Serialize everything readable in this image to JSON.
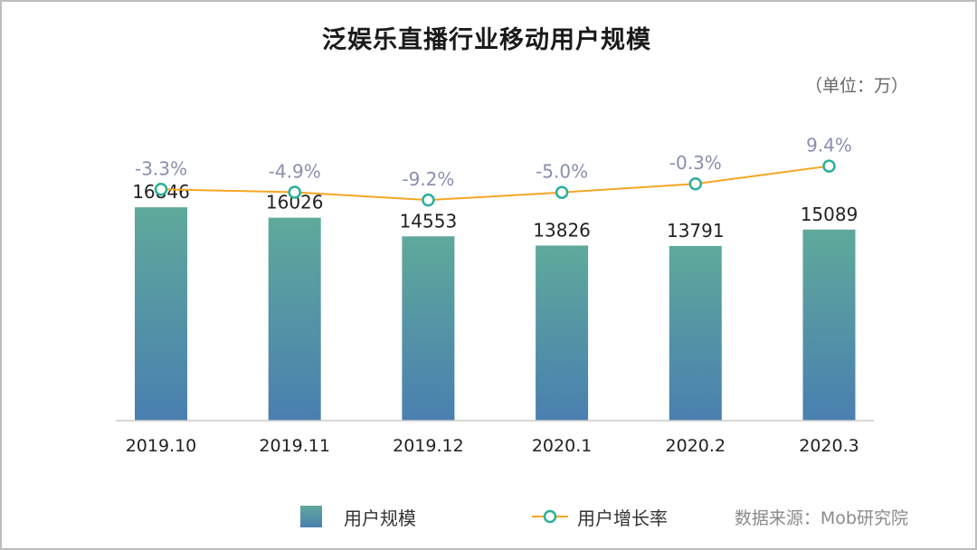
{
  "chart_data": {
    "type": "bar",
    "title": "泛娱乐直播行业移动用户规模",
    "unit_note": "（单位：万）",
    "categories": [
      "2019.10",
      "2019.11",
      "2019.12",
      "2020.1",
      "2020.2",
      "2020.3"
    ],
    "series": [
      {
        "name": "用户规模",
        "type": "bar",
        "values": [
          16846,
          16026,
          14553,
          13826,
          13791,
          15089
        ],
        "labels": [
          "16846",
          "16026",
          "14553",
          "13826",
          "13791",
          "15089"
        ],
        "color_top": "#5fa99b",
        "color_bottom": "#4a7fb0"
      },
      {
        "name": "用户增长率",
        "type": "line",
        "values": [
          -3.3,
          -4.9,
          -9.2,
          -5.0,
          -0.3,
          9.4
        ],
        "labels": [
          "-3.3%",
          "-4.9%",
          "-9.2%",
          "-5.0%",
          "-0.3%",
          "9.4%"
        ],
        "line_color": "#f5a623",
        "marker_color": "#2bb09a"
      }
    ],
    "ylim": [
      0,
      17000
    ],
    "rate_ylim": [
      -10,
      10
    ],
    "grid": false,
    "legend_position": "bottom-center"
  },
  "source": "数据来源：Mob研究院",
  "colors": {
    "label_rate": "#8a8fb0",
    "label_value": "#222222",
    "axis": "#cccccc"
  }
}
